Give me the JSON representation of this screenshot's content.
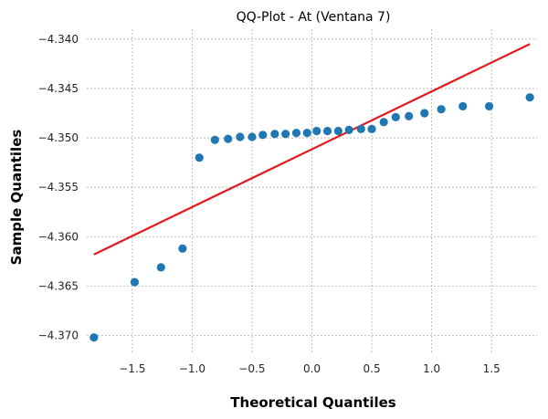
{
  "chart_data": {
    "type": "scatter",
    "title": "QQ-Plot - At (Ventana 7)",
    "xlabel": "Theoretical Quantiles",
    "ylabel": "Sample Quantiles",
    "xlim": [
      -1.88,
      1.88
    ],
    "ylim": [
      -4.3718,
      -4.339
    ],
    "xticks": [
      -1.5,
      -1.0,
      -0.5,
      0.0,
      0.5,
      1.0,
      1.5
    ],
    "xtick_labels": [
      "−1.5",
      "−1.0",
      "−0.5",
      "0.0",
      "0.5",
      "1.0",
      "1.5"
    ],
    "yticks": [
      -4.34,
      -4.345,
      -4.35,
      -4.355,
      -4.36,
      -4.365,
      -4.37
    ],
    "ytick_labels": [
      "−4.340",
      "−4.345",
      "−4.350",
      "−4.355",
      "−4.360",
      "−4.365",
      "−4.370"
    ],
    "grid": true,
    "points": {
      "color": "#1f77b4",
      "x": [
        -1.82,
        -1.48,
        -1.26,
        -1.08,
        -0.94,
        -0.81,
        -0.7,
        -0.6,
        -0.5,
        -0.41,
        -0.31,
        -0.22,
        -0.13,
        -0.04,
        0.04,
        0.13,
        0.22,
        0.31,
        0.41,
        0.5,
        0.6,
        0.7,
        0.81,
        0.94,
        1.08,
        1.26,
        1.48,
        1.82
      ],
      "y": [
        -4.3702,
        -4.3646,
        -4.3631,
        -4.3612,
        -4.352,
        -4.3502,
        -4.3501,
        -4.3499,
        -4.3499,
        -4.3497,
        -4.3496,
        -4.3496,
        -4.3495,
        -4.3495,
        -4.3493,
        -4.3493,
        -4.3493,
        -4.3492,
        -4.3491,
        -4.3491,
        -4.3484,
        -4.3479,
        -4.3478,
        -4.3475,
        -4.3471,
        -4.3468,
        -4.3468,
        -4.3459
      ]
    },
    "reference_line": {
      "color": "#e31a1c",
      "x": [
        -1.82,
        1.82
      ],
      "y": [
        -4.3618,
        -4.3405
      ]
    }
  }
}
